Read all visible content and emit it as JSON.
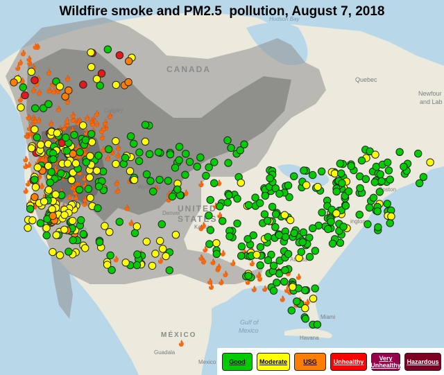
{
  "title": "Wildfire smoke and PM2.5  pollution, August 7, 2018",
  "map_labels": {
    "canada": "CANADA",
    "united_states": "UNITED",
    "united_states_2": "STATES",
    "mexico": "MÉXICO",
    "hudson_bay": "Hudson Bay",
    "gulf": "Gulf of",
    "gulf_2": "Mexico",
    "quebec": "Quebec",
    "newfoundland": "Newfour",
    "newfoundland_2": "and Lab",
    "calgary": "Calgary",
    "ottawa": "Ottaw",
    "boston": "Boston",
    "new_york": "York",
    "washington": "ington",
    "kansas": "Kansas",
    "atlanta": "Atlanta",
    "miami": "Miami",
    "havana": "Havana",
    "guadalajara": "Guadala",
    "mexico_city": "Mexico",
    "francisco": "ncisco",
    "denver": "Denver",
    "wyoming": "Wyoming"
  },
  "legend": {
    "items": [
      {
        "label": "Good",
        "color": "#00cc00",
        "text_color": "#000000"
      },
      {
        "label": "Moderate",
        "color": "#ffff00",
        "text_color": "#000000"
      },
      {
        "label": "USG",
        "color": "#ff7e00",
        "text_color": "#000000"
      },
      {
        "label": "Unhealthy",
        "color": "#ff0000",
        "text_color": "#ffffff"
      },
      {
        "label": "Very\nUnhealthy",
        "color": "#99004c",
        "text_color": "#ffffff"
      },
      {
        "label": "Hazardous",
        "color": "#7e0023",
        "text_color": "#ffffff"
      }
    ]
  },
  "colors": {
    "water": "#b8d7e8",
    "land": "#ece9dd",
    "smoke_light": "#9a9a9a",
    "smoke_dark": "#6a6a6a",
    "good": "#00cc00",
    "moderate": "#ffff00",
    "usg": "#ff7e00",
    "unhealthy": "#e31a1c",
    "fire": "#ff6a00"
  },
  "icons": {
    "fire": "fire-icon",
    "monitor": "air-monitor-marker",
    "triangle": "triangle-monitor-marker"
  }
}
